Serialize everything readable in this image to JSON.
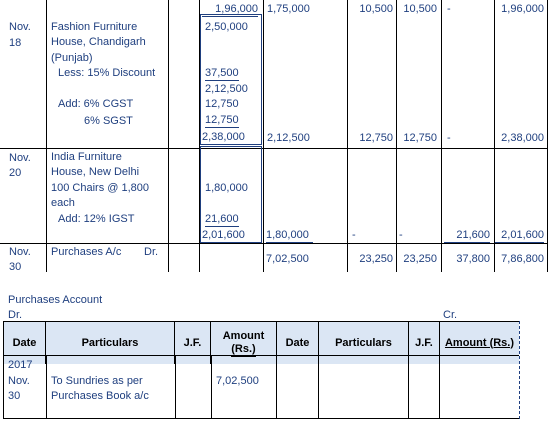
{
  "purchase_book": {
    "top_row": {
      "a": "1,96,000",
      "b": "1,75,000",
      "c": "10,500",
      "d": "10,500",
      "e": "-",
      "f": "1,96,000"
    },
    "entry1": {
      "date": [
        "Nov.",
        "18"
      ],
      "party": [
        "Fashion Furniture",
        "House, Chandigarh",
        "(Punjab)"
      ],
      "discount_label": "Less: 15% Discount",
      "cgst_label": "Add: 6% CGST",
      "sgst_label": "6% SGST",
      "detail": [
        "2,50,000",
        "37,500",
        "2,12,500",
        "12,750",
        "12,750",
        "2,38,000"
      ],
      "totals": {
        "b": "2,12,500",
        "c": "12,750",
        "d": "12,750",
        "e": "-",
        "f": "2,38,000"
      }
    },
    "entry2": {
      "date": [
        "Nov.",
        "20"
      ],
      "party": [
        "India Furniture",
        "House, New Delhi",
        "100 Chairs @ 1,800",
        "each"
      ],
      "igst_label": "Add: 12% IGST",
      "detail": [
        "1,80,000",
        "21,600",
        "2,01,600"
      ],
      "totals": {
        "b": "1,80,000",
        "c": "-",
        "d": "-",
        "e": "21,600",
        "f": "2,01,600"
      }
    },
    "entry3": {
      "date": [
        "Nov.",
        "30"
      ],
      "particulars": "Purchases A/c",
      "dr": "Dr.",
      "totals": {
        "b": "7,02,500",
        "c": "23,250",
        "d": "23,250",
        "e": "37,800",
        "f": "7,86,800"
      }
    }
  },
  "ledger": {
    "title": "Purchases Account",
    "dr": "Dr.",
    "cr": "Cr.",
    "headers": [
      "Date",
      "Particulars",
      "J.F.",
      "Amount (Rs.)",
      "Date",
      "Particulars",
      "J.F.",
      "Amount (Rs.)"
    ],
    "amount_header_lines": [
      "Amount",
      "(Rs.)"
    ],
    "row": {
      "date": [
        "2017",
        "Nov.",
        "30"
      ],
      "particulars": [
        "To Sundries as per",
        "Purchases Book a/c"
      ],
      "amount": "7,02,500"
    }
  }
}
